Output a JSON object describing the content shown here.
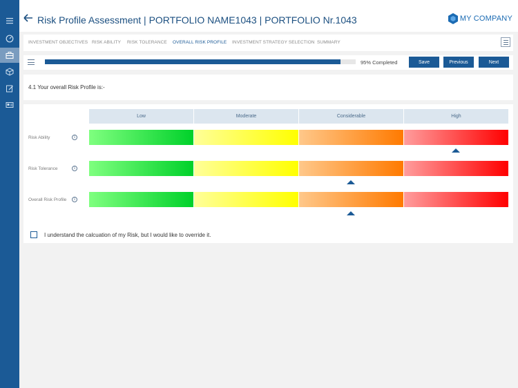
{
  "colors": {
    "sidebar": "#1b5a96",
    "accent": "#1b5a96",
    "low": "#00d12a",
    "moderate": "#ffff00",
    "considerable": "#ff7a00",
    "high": "#ff0000"
  },
  "sidebar": {
    "items": [
      {
        "icon": "hamburger-menu-icon"
      },
      {
        "icon": "dashboard-gauge-icon"
      },
      {
        "icon": "briefcase-icon",
        "active": true
      },
      {
        "icon": "cube-icon"
      },
      {
        "icon": "edit-document-icon"
      },
      {
        "icon": "id-card-icon"
      }
    ]
  },
  "header": {
    "title": "Risk Profile Assessment | PORTFOLIO NAME1043 | PORTFOLIO Nr.1043",
    "back_icon": "back-arrow-icon",
    "company": "MY COMPANY"
  },
  "tabs": {
    "items": [
      {
        "label": "INVESTMENT OBJECTIVES",
        "active": false
      },
      {
        "label": "RISK ABILITY",
        "active": false
      },
      {
        "label": "RISK TOLERANCE",
        "active": false
      },
      {
        "label": "OVERALL RISK PROFILE",
        "active": true
      },
      {
        "label": "INVESTMENT STRATEGY SELECTION",
        "active": false
      },
      {
        "label": "SUMMARY",
        "active": false
      }
    ],
    "menu_icon": "list-menu-icon"
  },
  "progress": {
    "value": 0.95,
    "text": "95% Completed",
    "save_label": "Save",
    "previous_label": "Previous",
    "next_label": "Next"
  },
  "question": {
    "text": "4.1  Your overall Risk Profile is:-"
  },
  "risk_scale": {
    "levels": [
      "Low",
      "Moderate",
      "Considerable",
      "High"
    ],
    "rows": [
      {
        "label": "Risk Ability",
        "selected_level": "High"
      },
      {
        "label": "Risk Tolerance",
        "selected_level": "Considerable"
      },
      {
        "label": "Overall Risk Profile",
        "selected_level": "Considerable"
      }
    ],
    "info_glyph": "i"
  },
  "override": {
    "checked": false,
    "label": "I understand the calcuation of my Risk, but I would like to override it."
  }
}
